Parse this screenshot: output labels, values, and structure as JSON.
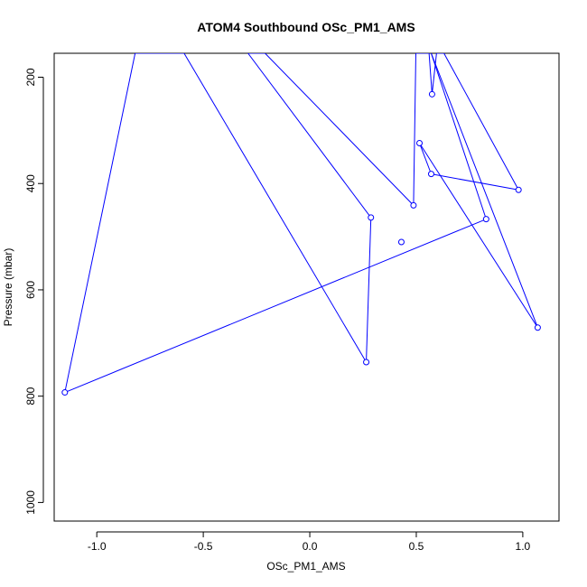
{
  "chart_data": {
    "type": "line",
    "title": "ATOM4 Southbound OSc_PM1_AMS",
    "xlabel": "OSc_PM1_AMS",
    "ylabel": "Pressure (mbar)",
    "xlim": [
      -1.2,
      1.17
    ],
    "ylim": [
      1035,
      155
    ],
    "y_reversed": true,
    "x_ticks": [
      -1.0,
      -0.5,
      0.0,
      0.5,
      1.0
    ],
    "x_tick_labels": [
      "-1.0",
      "-0.5",
      "0.0",
      "0.5",
      "1.0"
    ],
    "y_ticks": [
      200,
      400,
      600,
      800,
      1000
    ],
    "y_tick_labels": [
      "200",
      "400",
      "600",
      "800",
      "1000"
    ],
    "grid": false,
    "legend": "none",
    "series": [
      {
        "color": "#0000ff",
        "marker": "open-circle",
        "points": [
          {
            "x": -1.15,
            "y": 793
          },
          {
            "x": -0.82,
            "y": 155
          },
          {
            "x": -0.59,
            "y": 155
          },
          {
            "x": 0.265,
            "y": 736
          },
          {
            "x": 0.287,
            "y": 464
          },
          {
            "x": -0.29,
            "y": 155
          },
          {
            "x": -0.21,
            "y": 155
          },
          {
            "x": 0.487,
            "y": 441
          },
          {
            "x": 0.498,
            "y": 155
          },
          {
            "x": 0.56,
            "y": 155
          },
          {
            "x": 0.574,
            "y": 232
          },
          {
            "x": 0.595,
            "y": 155
          },
          {
            "x": 0.63,
            "y": 155
          },
          {
            "x": 0.98,
            "y": 412
          },
          {
            "x": 0.57,
            "y": 382
          },
          {
            "x": 0.515,
            "y": 324
          },
          {
            "x": 1.07,
            "y": 671
          },
          {
            "x": 0.57,
            "y": 155
          },
          {
            "x": 0.828,
            "y": 467
          },
          {
            "x": -1.15,
            "y": 793
          }
        ],
        "extra_markers": [
          {
            "x": 0.43,
            "y": 510
          }
        ]
      }
    ]
  }
}
